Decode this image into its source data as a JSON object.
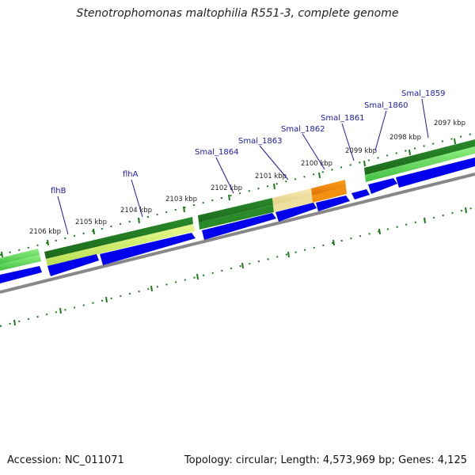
{
  "title": "Stenotrophomonas maltophilia R551-3, complete genome",
  "footer": {
    "accession": "Accession: NC_011071",
    "summary": "Topology: circular; Length: 4,573,969 bp; Genes: 4,125"
  },
  "ruler_labels": [
    "2106 kbp",
    "2105 kbp",
    "2104 kbp",
    "2103 kbp",
    "2102 kbp",
    "2101 kbp",
    "2100 kbp",
    "2099 kbp",
    "2098 kbp",
    "2097 kbp"
  ],
  "genes": [
    "flhB",
    "flhA",
    "Smal_1864",
    "Smal_1863",
    "Smal_1862",
    "Smal_1861",
    "Smal_1860",
    "Smal_1859"
  ],
  "colors": {
    "cds": "#0000ee",
    "tick": "#1a7a1a",
    "backbone": "#888888",
    "label": "#1a1aa6",
    "green_dark": "#2a8a2a",
    "green_light": "#66dd55",
    "yellow_green": "#d8f070",
    "pale_yellow": "#f0e0a0",
    "orange": "#f08800"
  }
}
